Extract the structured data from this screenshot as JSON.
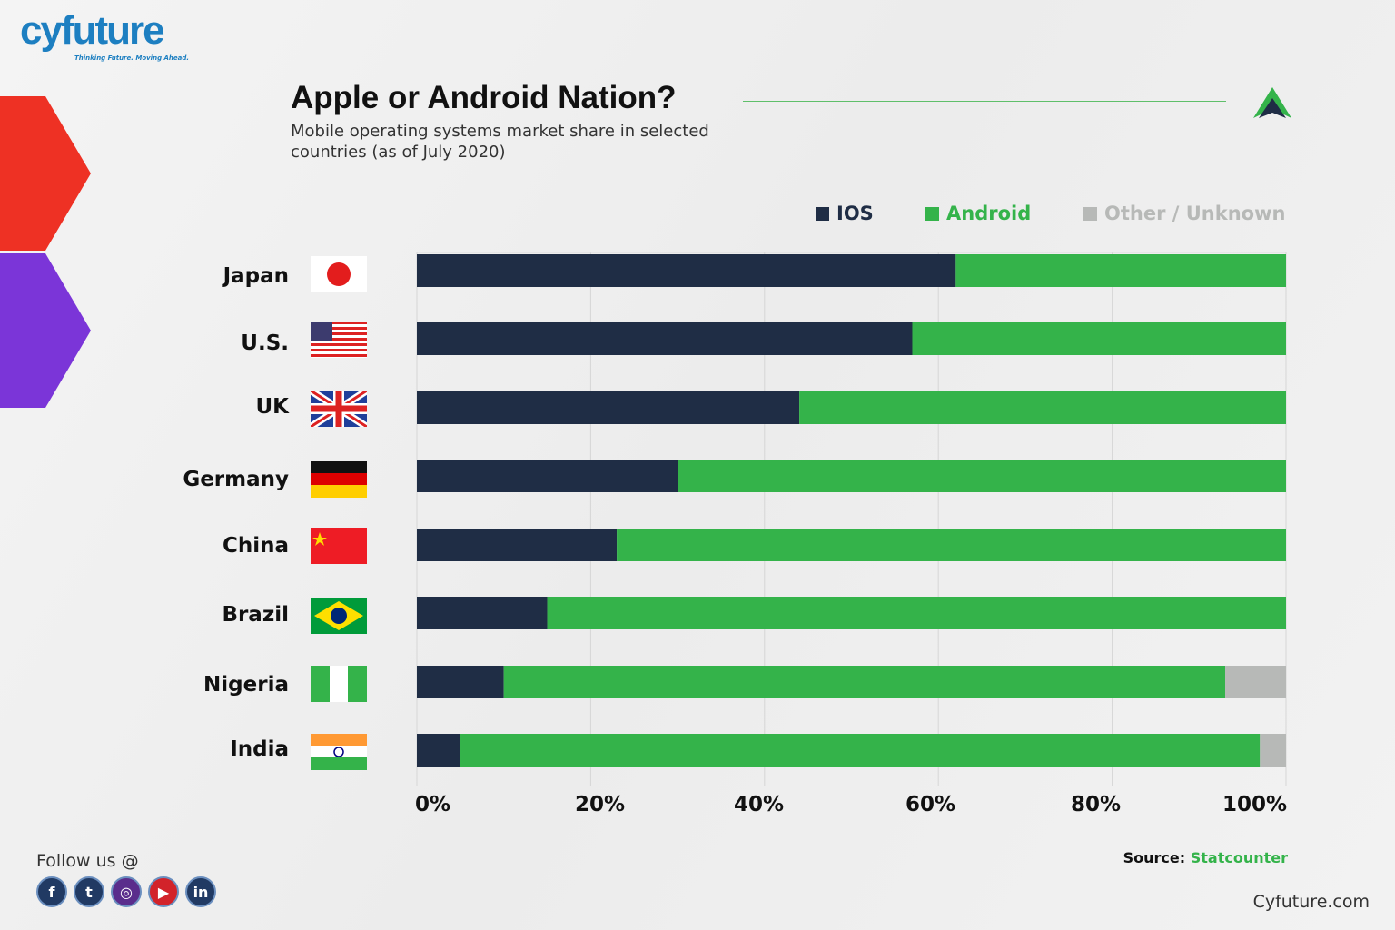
{
  "brand": {
    "logo": "cyfuture",
    "tagline": "Thinking Future. Moving Ahead."
  },
  "footer": {
    "follow": "Follow us @",
    "source_label": "Source:",
    "source_value": "Statcounter",
    "site": "Cyfuture.com",
    "social": [
      "facebook-icon",
      "twitter-icon",
      "instagram-icon",
      "youtube-icon",
      "linkedin-icon"
    ]
  },
  "colors": {
    "ios": "#1f2d45",
    "android": "#34b34a",
    "other": "#b7b9b7"
  },
  "chart_data": {
    "type": "bar",
    "orientation": "horizontal",
    "stacked": true,
    "title": "Apple or Android Nation?",
    "subtitle": "Mobile operating systems market share in selected countries (as of July 2020)",
    "categories": [
      "Japan",
      "U.S.",
      "UK",
      "Germany",
      "China",
      "Brazil",
      "Nigeria",
      "India"
    ],
    "series": [
      {
        "name": "IOS",
        "values": [
          62,
          57,
          44,
          30,
          23,
          15,
          10,
          5
        ]
      },
      {
        "name": "Android",
        "values": [
          38,
          43,
          56,
          70,
          77,
          85,
          83,
          92
        ]
      },
      {
        "name": "Other / Unknown",
        "values": [
          0,
          0,
          0,
          0,
          0,
          0,
          7,
          3
        ]
      }
    ],
    "xticks": [
      "0%",
      "20%",
      "40%",
      "60%",
      "80%",
      "100%"
    ],
    "xlim": [
      0,
      100
    ],
    "grid": true,
    "legend": "top-right"
  }
}
